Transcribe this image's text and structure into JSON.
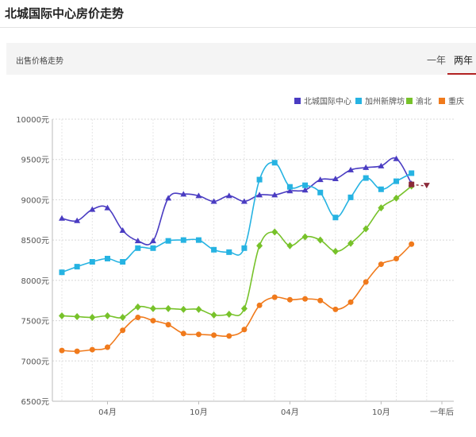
{
  "page": {
    "title": "北城国际中心房价走势",
    "subheader_label": "出售价格走势",
    "tabs": [
      {
        "label": "一年"
      },
      {
        "label": "两年"
      }
    ],
    "active_tab": 1
  },
  "chart_data": {
    "type": "line",
    "title": "",
    "xlabel": "",
    "ylabel": "",
    "ylim": [
      6500,
      10000
    ],
    "yticks": [
      "10000元",
      "9500元",
      "9000元",
      "8500元",
      "8000元",
      "7500元",
      "7000元",
      "6500元"
    ],
    "ytick_values": [
      10000,
      9500,
      9000,
      8500,
      8000,
      7500,
      7000,
      6500
    ],
    "x_tick_labels": [
      {
        "label": "04月",
        "index": 3
      },
      {
        "label": "10月",
        "index": 9
      },
      {
        "label": "04月",
        "index": 15
      },
      {
        "label": "10月",
        "index": 21
      },
      {
        "label": "一年后",
        "index": 25
      }
    ],
    "x_count": 26,
    "grid": true,
    "legend_position": "top-right",
    "series": [
      {
        "name": "北城国际中心",
        "color": "#4a3cc2",
        "marker": "triangle",
        "values": [
          8770,
          8740,
          8880,
          8900,
          8620,
          8490,
          8490,
          9020,
          9070,
          9050,
          8980,
          9050,
          8980,
          9060,
          9060,
          9110,
          9120,
          9250,
          9260,
          9370,
          9400,
          9420,
          9510,
          9200,
          null,
          null
        ]
      },
      {
        "name": "加州新牌坊",
        "color": "#26b3e2",
        "marker": "square",
        "values": [
          8100,
          8170,
          8230,
          8270,
          8230,
          8400,
          8400,
          8490,
          8500,
          8500,
          8380,
          8350,
          8400,
          9250,
          9460,
          9160,
          9180,
          9090,
          8780,
          9030,
          9270,
          9130,
          9230,
          9330,
          null,
          null
        ]
      },
      {
        "name": "渝北",
        "color": "#77c22a",
        "marker": "diamond",
        "values": [
          7560,
          7550,
          7540,
          7560,
          7540,
          7670,
          7650,
          7650,
          7640,
          7640,
          7570,
          7580,
          7650,
          8430,
          8600,
          8430,
          8540,
          8500,
          8360,
          8460,
          8640,
          8900,
          9020,
          9170,
          null,
          null
        ]
      },
      {
        "name": "重庆",
        "color": "#f07a1c",
        "marker": "circle",
        "values": [
          7130,
          7120,
          7140,
          7170,
          7380,
          7540,
          7500,
          7450,
          7340,
          7330,
          7320,
          7310,
          7390,
          7690,
          7790,
          7760,
          7770,
          7750,
          7640,
          7730,
          7980,
          8200,
          8270,
          8450,
          null,
          null
        ]
      }
    ],
    "forecast": {
      "color": "#8b2a3a",
      "points": [
        {
          "index": 23,
          "value": 9190
        },
        {
          "index": 24,
          "value": 9170
        }
      ]
    }
  }
}
